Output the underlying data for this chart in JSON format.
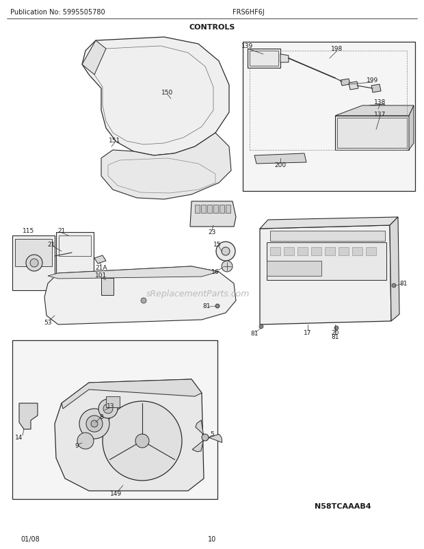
{
  "title": "CONTROLS",
  "pub_no": "Publication No: 5995505780",
  "model": "FRS6HF6J",
  "date": "01/08",
  "page": "10",
  "diagram_id": "N58TCAAAB4",
  "bg_color": "#ffffff",
  "lc": "#2a2a2a",
  "watermark": "sReplacementParts.com"
}
